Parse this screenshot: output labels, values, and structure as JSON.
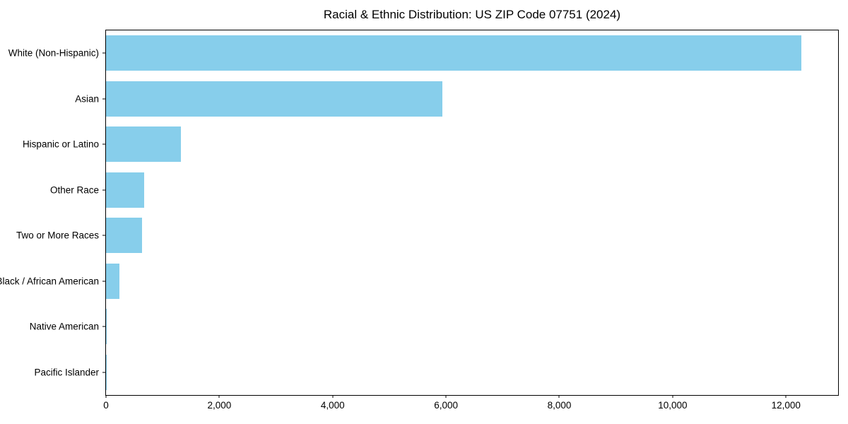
{
  "chart_data": {
    "type": "bar",
    "orientation": "horizontal",
    "title": "Racial & Ethnic Distribution: US ZIP Code 07751 (2024)",
    "categories": [
      "White (Non-Hispanic)",
      "Asian",
      "Hispanic or Latino",
      "Other Race",
      "Two or More Races",
      "Black / African American",
      "Native American",
      "Pacific Islander"
    ],
    "values": [
      12270,
      5930,
      1320,
      670,
      640,
      235,
      14,
      9
    ],
    "bar_color": "#87CEEB",
    "xlabel": "",
    "ylabel": "",
    "xlim": [
      0,
      12920
    ],
    "x_ticks": [
      {
        "value": 0,
        "label": "0"
      },
      {
        "value": 2000,
        "label": "2,000"
      },
      {
        "value": 4000,
        "label": "4,000"
      },
      {
        "value": 6000,
        "label": "6,000"
      },
      {
        "value": 8000,
        "label": "8,000"
      },
      {
        "value": 10000,
        "label": "10,000"
      },
      {
        "value": 12000,
        "label": "12,000"
      }
    ],
    "grid": false,
    "legend": "none",
    "background": "#ffffff",
    "spine_color": "#000000"
  }
}
